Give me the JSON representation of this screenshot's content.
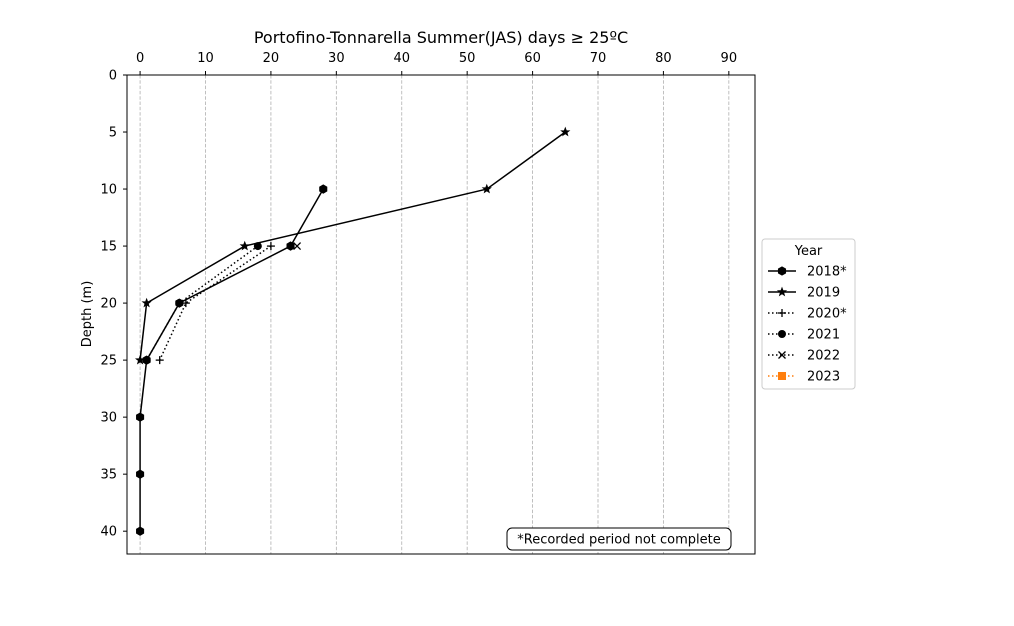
{
  "chart_data": {
    "type": "line",
    "title": "Portofino-Tonnarella Summer(JAS) days ≥ 25ºC",
    "xlabel": "",
    "ylabel": "Depth (m)",
    "xlim": [
      -2,
      94
    ],
    "ylim": [
      42,
      0
    ],
    "x_ticks": [
      0,
      10,
      20,
      30,
      40,
      50,
      60,
      70,
      80,
      90
    ],
    "y_ticks": [
      0,
      5,
      10,
      15,
      20,
      25,
      30,
      35,
      40
    ],
    "x_axis_position": "top",
    "y_inverted": true,
    "grid": "x-dashed",
    "legend": {
      "title": "Year",
      "placement": "center-right-outside"
    },
    "annotation": "*Recorded period not complete",
    "series": [
      {
        "name": "2018*",
        "marker": "hexagon",
        "line": "solid",
        "color": "#000000",
        "points": [
          [
            28,
            10
          ],
          [
            23,
            15
          ],
          [
            6,
            20
          ],
          [
            1,
            25
          ],
          [
            0,
            30
          ],
          [
            0,
            35
          ],
          [
            0,
            40
          ]
        ]
      },
      {
        "name": "2019",
        "marker": "star",
        "line": "solid",
        "color": "#000000",
        "points": [
          [
            65,
            5
          ],
          [
            53,
            10
          ],
          [
            16,
            15
          ],
          [
            1,
            20
          ],
          [
            0,
            25
          ]
        ]
      },
      {
        "name": "2020*",
        "marker": "plus",
        "line": "dotted",
        "color": "#000000",
        "points": [
          [
            20,
            15
          ],
          [
            7,
            20
          ],
          [
            3,
            25
          ]
        ]
      },
      {
        "name": "2021",
        "marker": "circle",
        "line": "dotted",
        "color": "#000000",
        "points": [
          [
            18,
            15
          ],
          [
            6,
            20
          ],
          [
            1,
            25
          ]
        ]
      },
      {
        "name": "2022",
        "marker": "x",
        "line": "dotted",
        "color": "#000000",
        "points": [
          [
            24,
            15
          ]
        ]
      },
      {
        "name": "2023",
        "marker": "square",
        "line": "dotted",
        "color": "#ff7f0e",
        "points": []
      }
    ]
  }
}
